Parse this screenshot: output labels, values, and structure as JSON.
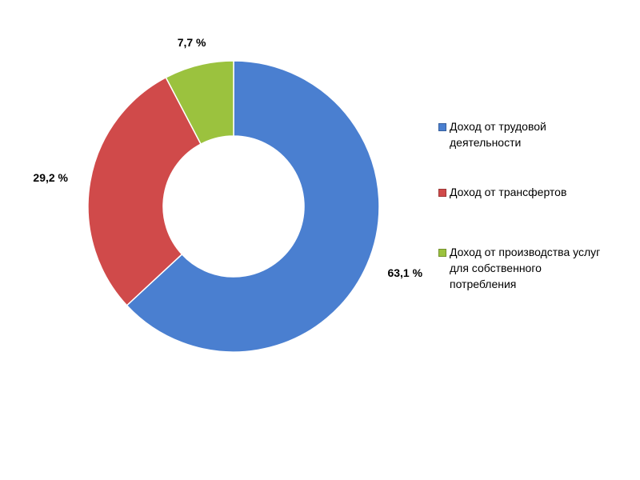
{
  "chart_data": {
    "type": "donut",
    "categories": [
      "Доход от трудовой деятельности",
      "Доход от трансфертов",
      "Доход от производства услуг для собственного потребления"
    ],
    "values": [
      63.1,
      29.2,
      7.7
    ],
    "value_labels": [
      "63,1 %",
      "29,2 %",
      "7,7 %"
    ],
    "colors": [
      "#4a7fd0",
      "#d04a4a",
      "#9bc23e"
    ],
    "legend": "right"
  }
}
